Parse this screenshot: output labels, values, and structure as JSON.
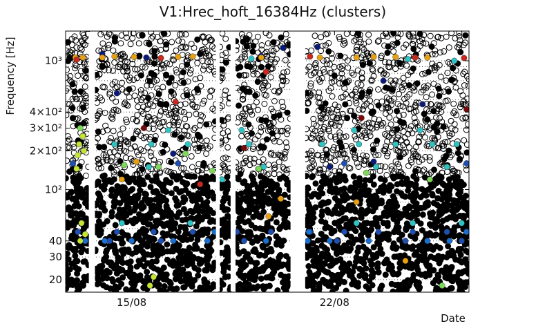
{
  "chart_data": {
    "type": "scatter",
    "title": "V1:Hrec_hoft_16384Hz (clusters)",
    "xlabel": "Date",
    "ylabel": "Frequency [Hz]",
    "yscale": "log",
    "ylim": [
      16,
      1700
    ],
    "xlim": [
      0,
      16.5
    ],
    "grid": true,
    "legend": "none",
    "y_ticks": [
      {
        "value": 20,
        "label": "20"
      },
      {
        "value": 30,
        "label": "30"
      },
      {
        "value": 40,
        "label": "40"
      },
      {
        "value": 100,
        "label": "10²"
      },
      {
        "value": 200,
        "label": "2×10²"
      },
      {
        "value": 300,
        "label": "3×10²"
      },
      {
        "value": 400,
        "label": "4×10²"
      },
      {
        "value": 1000,
        "label": "10³"
      }
    ],
    "y_minor_grid": [
      50,
      60,
      70,
      80,
      90,
      500,
      600,
      700,
      800,
      900
    ],
    "x_ticks": [
      {
        "value": 2.7,
        "label": "15/08"
      },
      {
        "value": 11.0,
        "label": "22/08"
      }
    ],
    "data_gaps_days": [
      [
        0.95,
        1.2
      ],
      [
        6.15,
        6.3
      ],
      [
        6.75,
        6.95
      ],
      [
        9.2,
        9.8
      ]
    ],
    "colors": {
      "unclustered_outline": "#000000",
      "dark_blue": "#0a1a7a",
      "blue": "#1f4fb0",
      "mid_blue": "#1a6fd0",
      "teal": "#2ec4c4",
      "green": "#7ed957",
      "yellow_green": "#c3e632",
      "orange": "#e6a010",
      "red": "#c8281e",
      "dark_red": "#7a0a0a"
    },
    "series": [
      {
        "color": "#2ec4c4",
        "points": [
          [
            2.0,
            225
          ],
          [
            3.5,
            225
          ],
          [
            5.0,
            225
          ],
          [
            7.5,
            225
          ],
          [
            10.5,
            225
          ],
          [
            12.0,
            225
          ],
          [
            13.5,
            225
          ],
          [
            15.0,
            225
          ],
          [
            16.0,
            225
          ],
          [
            4.2,
            290
          ],
          [
            7.2,
            290
          ],
          [
            11.8,
            290
          ],
          [
            14.5,
            290
          ],
          [
            3.4,
            150
          ],
          [
            8.1,
            150
          ],
          [
            12.7,
            150
          ],
          [
            15.6,
            150
          ],
          [
            6.4,
            120
          ],
          [
            2.3,
            55
          ],
          [
            5.1,
            55
          ],
          [
            11.9,
            55
          ],
          [
            14.2,
            55
          ],
          [
            16.2,
            55
          ],
          [
            15.9,
            1000
          ],
          [
            7.6,
            1040
          ],
          [
            14.0,
            1030
          ]
        ]
      },
      {
        "color": "#1f4fb0",
        "points": [
          [
            0.5,
            47
          ],
          [
            2.1,
            47
          ],
          [
            3.6,
            47
          ],
          [
            5.2,
            47
          ],
          [
            7.0,
            47
          ],
          [
            8.4,
            47
          ],
          [
            10.0,
            47
          ],
          [
            11.4,
            47
          ],
          [
            12.8,
            47
          ],
          [
            14.2,
            47
          ],
          [
            15.6,
            47
          ],
          [
            1.8,
            40
          ],
          [
            3.9,
            40
          ],
          [
            7.3,
            40
          ],
          [
            11.1,
            40
          ],
          [
            13.9,
            40
          ],
          [
            16.2,
            40
          ],
          [
            0.3,
            160
          ],
          [
            4.6,
            160
          ],
          [
            11.4,
            160
          ],
          [
            16.4,
            160
          ]
        ]
      },
      {
        "color": "#1a6fd0",
        "points": [
          [
            0.8,
            40
          ],
          [
            1.6,
            40
          ],
          [
            2.7,
            40
          ],
          [
            4.4,
            40
          ],
          [
            5.8,
            40
          ],
          [
            8.2,
            40
          ],
          [
            9.9,
            40
          ],
          [
            10.8,
            40
          ],
          [
            12.4,
            40
          ],
          [
            14.8,
            40
          ],
          [
            15.7,
            40
          ],
          [
            6.1,
            47
          ],
          [
            9.95,
            47
          ],
          [
            16.4,
            47
          ]
        ]
      },
      {
        "color": "#0a1a7a",
        "points": [
          [
            1.5,
            1130
          ],
          [
            2.1,
            560
          ],
          [
            3.3,
            1060
          ],
          [
            8.9,
            1260
          ],
          [
            8.0,
            1090
          ],
          [
            10.3,
            1280
          ],
          [
            14.6,
            460
          ],
          [
            13.0,
            700
          ],
          [
            4.4,
            190
          ],
          [
            10.8,
            150
          ],
          [
            12.6,
            165
          ]
        ]
      },
      {
        "color": "#c3e632",
        "points": [
          [
            0.55,
            225
          ],
          [
            0.75,
            200
          ],
          [
            0.5,
            185
          ],
          [
            0.65,
            55
          ],
          [
            0.8,
            45
          ],
          [
            0.6,
            40
          ],
          [
            0.45,
            145
          ],
          [
            3.6,
            21
          ],
          [
            3.45,
            18
          ],
          [
            0.7,
            260
          ]
        ]
      },
      {
        "color": "#7ed957",
        "points": [
          [
            0.6,
            300
          ],
          [
            2.4,
            155
          ],
          [
            3.8,
            150
          ],
          [
            6.0,
            140
          ],
          [
            7.9,
            145
          ],
          [
            12.3,
            135
          ],
          [
            14.9,
            120
          ],
          [
            15.4,
            18
          ],
          [
            4.9,
            190
          ]
        ]
      },
      {
        "color": "#e6a010",
        "points": [
          [
            0.4,
            1060
          ],
          [
            0.7,
            1060
          ],
          [
            1.5,
            1060
          ],
          [
            2.0,
            1080
          ],
          [
            2.8,
            1070
          ],
          [
            4.6,
            1070
          ],
          [
            5.2,
            1080
          ],
          [
            8.0,
            1060
          ],
          [
            9.7,
            1050
          ],
          [
            10.4,
            1060
          ],
          [
            11.9,
            1060
          ],
          [
            12.6,
            1070
          ],
          [
            13.5,
            1070
          ],
          [
            14.8,
            1060
          ],
          [
            2.3,
            120
          ],
          [
            8.8,
            85
          ],
          [
            11.9,
            80
          ],
          [
            2.9,
            165
          ],
          [
            8.3,
            62
          ],
          [
            13.9,
            28
          ]
        ]
      },
      {
        "color": "#c8281e",
        "points": [
          [
            0.45,
            1020
          ],
          [
            3.9,
            1050
          ],
          [
            4.5,
            480
          ],
          [
            10.0,
            1080
          ],
          [
            16.3,
            1050
          ],
          [
            14.3,
            1060
          ],
          [
            5.5,
            110
          ],
          [
            8.2,
            820
          ]
        ]
      },
      {
        "color": "#7a0a0a",
        "points": [
          [
            3.2,
            300
          ],
          [
            12.1,
            360
          ],
          [
            16.4,
            420
          ],
          [
            7.3,
            210
          ]
        ]
      }
    ]
  }
}
